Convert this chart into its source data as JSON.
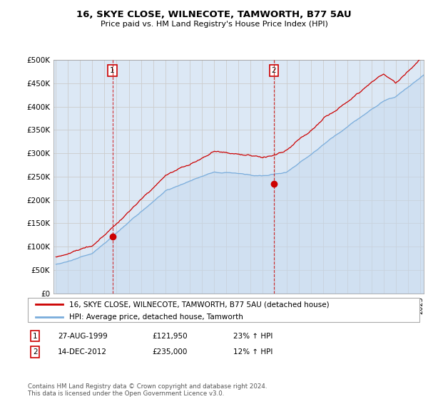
{
  "title": "16, SKYE CLOSE, WILNECOTE, TAMWORTH, B77 5AU",
  "subtitle": "Price paid vs. HM Land Registry's House Price Index (HPI)",
  "ylabel_ticks": [
    "£0",
    "£50K",
    "£100K",
    "£150K",
    "£200K",
    "£250K",
    "£300K",
    "£350K",
    "£400K",
    "£450K",
    "£500K"
  ],
  "ytick_values": [
    0,
    50000,
    100000,
    150000,
    200000,
    250000,
    300000,
    350000,
    400000,
    450000,
    500000
  ],
  "ylim": [
    0,
    500000
  ],
  "xlim_start": 1994.8,
  "xlim_end": 2025.3,
  "sale1_date": 1999.65,
  "sale1_price": 121950,
  "sale2_date": 2012.96,
  "sale2_price": 235000,
  "legend_line1": "16, SKYE CLOSE, WILNECOTE, TAMWORTH, B77 5AU (detached house)",
  "legend_line2": "HPI: Average price, detached house, Tamworth",
  "table_row1": [
    "1",
    "27-AUG-1999",
    "£121,950",
    "23% ↑ HPI"
  ],
  "table_row2": [
    "2",
    "14-DEC-2012",
    "£235,000",
    "12% ↑ HPI"
  ],
  "footer": "Contains HM Land Registry data © Crown copyright and database right 2024.\nThis data is licensed under the Open Government Licence v3.0.",
  "price_color": "#cc0000",
  "hpi_color": "#7aaddc",
  "plot_bg": "#dce8f5",
  "hpi_fill_color": "#c5d9ee"
}
